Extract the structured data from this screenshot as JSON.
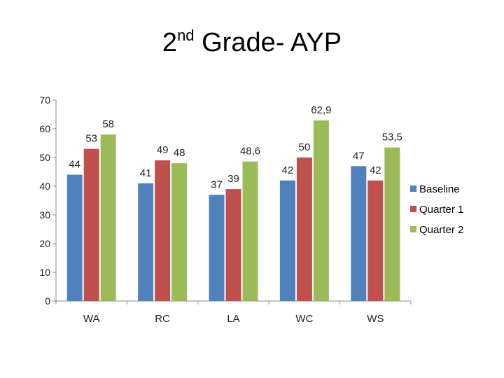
{
  "title": {
    "main_before": "2",
    "superscript": "nd",
    "main_after": " Grade- AYP"
  },
  "chart_data": {
    "type": "bar",
    "title": "2nd Grade- AYP",
    "xlabel": "",
    "ylabel": "",
    "ylim": [
      0,
      70
    ],
    "yticks": [
      0,
      10,
      20,
      30,
      40,
      50,
      60,
      70
    ],
    "grid": false,
    "legend_position": "right",
    "categories": [
      "WA",
      "RC",
      "LA",
      "WC",
      "WS"
    ],
    "series": [
      {
        "name": "Baseline",
        "color": "#4F81BD",
        "values": [
          44,
          41,
          37,
          42,
          47
        ],
        "labels": [
          "44",
          "41",
          "37",
          "42",
          "47"
        ]
      },
      {
        "name": "Quarter 1",
        "color": "#C0504D",
        "values": [
          53,
          49,
          39,
          50,
          42
        ],
        "labels": [
          "53",
          "49",
          "39",
          "50",
          "42"
        ]
      },
      {
        "name": "Quarter 2",
        "color": "#9BBB59",
        "values": [
          58,
          48,
          48.6,
          62.9,
          53.5
        ],
        "labels": [
          "58",
          "48",
          "48,6",
          "62,9",
          "53,5"
        ]
      }
    ]
  }
}
